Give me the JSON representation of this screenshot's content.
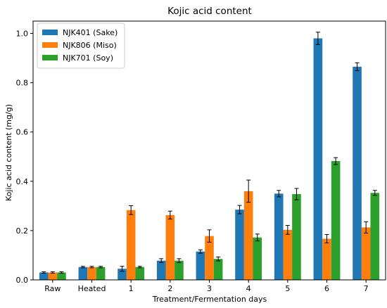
{
  "chart_data": {
    "type": "bar",
    "title": "Kojic acid content",
    "xlabel": "Treatment/Fermentation days",
    "ylabel": "Kojic acid content (mg/g)",
    "categories": [
      "Raw",
      "Heated",
      "1",
      "2",
      "3",
      "4",
      "5",
      "6",
      "7"
    ],
    "ylim": [
      0,
      1.05
    ],
    "yticks": [
      "0.0",
      "0.2",
      "0.4",
      "0.6",
      "0.8",
      "1.0"
    ],
    "grid": false,
    "legend_position": "top-left",
    "series": [
      {
        "name": "NJK401 (Sake)",
        "color": "#1f77b4",
        "values": [
          0.03,
          0.052,
          0.045,
          0.078,
          0.115,
          0.285,
          0.35,
          0.98,
          0.865
        ],
        "errors": [
          0.003,
          0.003,
          0.01,
          0.008,
          0.007,
          0.017,
          0.013,
          0.025,
          0.016
        ]
      },
      {
        "name": "NJK806 (Miso)",
        "color": "#ff7f0e",
        "values": [
          0.03,
          0.052,
          0.283,
          0.263,
          0.178,
          0.36,
          0.203,
          0.167,
          0.213
        ],
        "errors": [
          0.003,
          0.003,
          0.018,
          0.016,
          0.025,
          0.045,
          0.018,
          0.017,
          0.023
        ]
      },
      {
        "name": "NJK701 (Soy)",
        "color": "#2ca02c",
        "values": [
          0.03,
          0.052,
          0.052,
          0.078,
          0.085,
          0.172,
          0.348,
          0.482,
          0.353
        ],
        "errors": [
          0.003,
          0.003,
          0.003,
          0.008,
          0.008,
          0.014,
          0.023,
          0.014,
          0.01
        ]
      }
    ]
  }
}
